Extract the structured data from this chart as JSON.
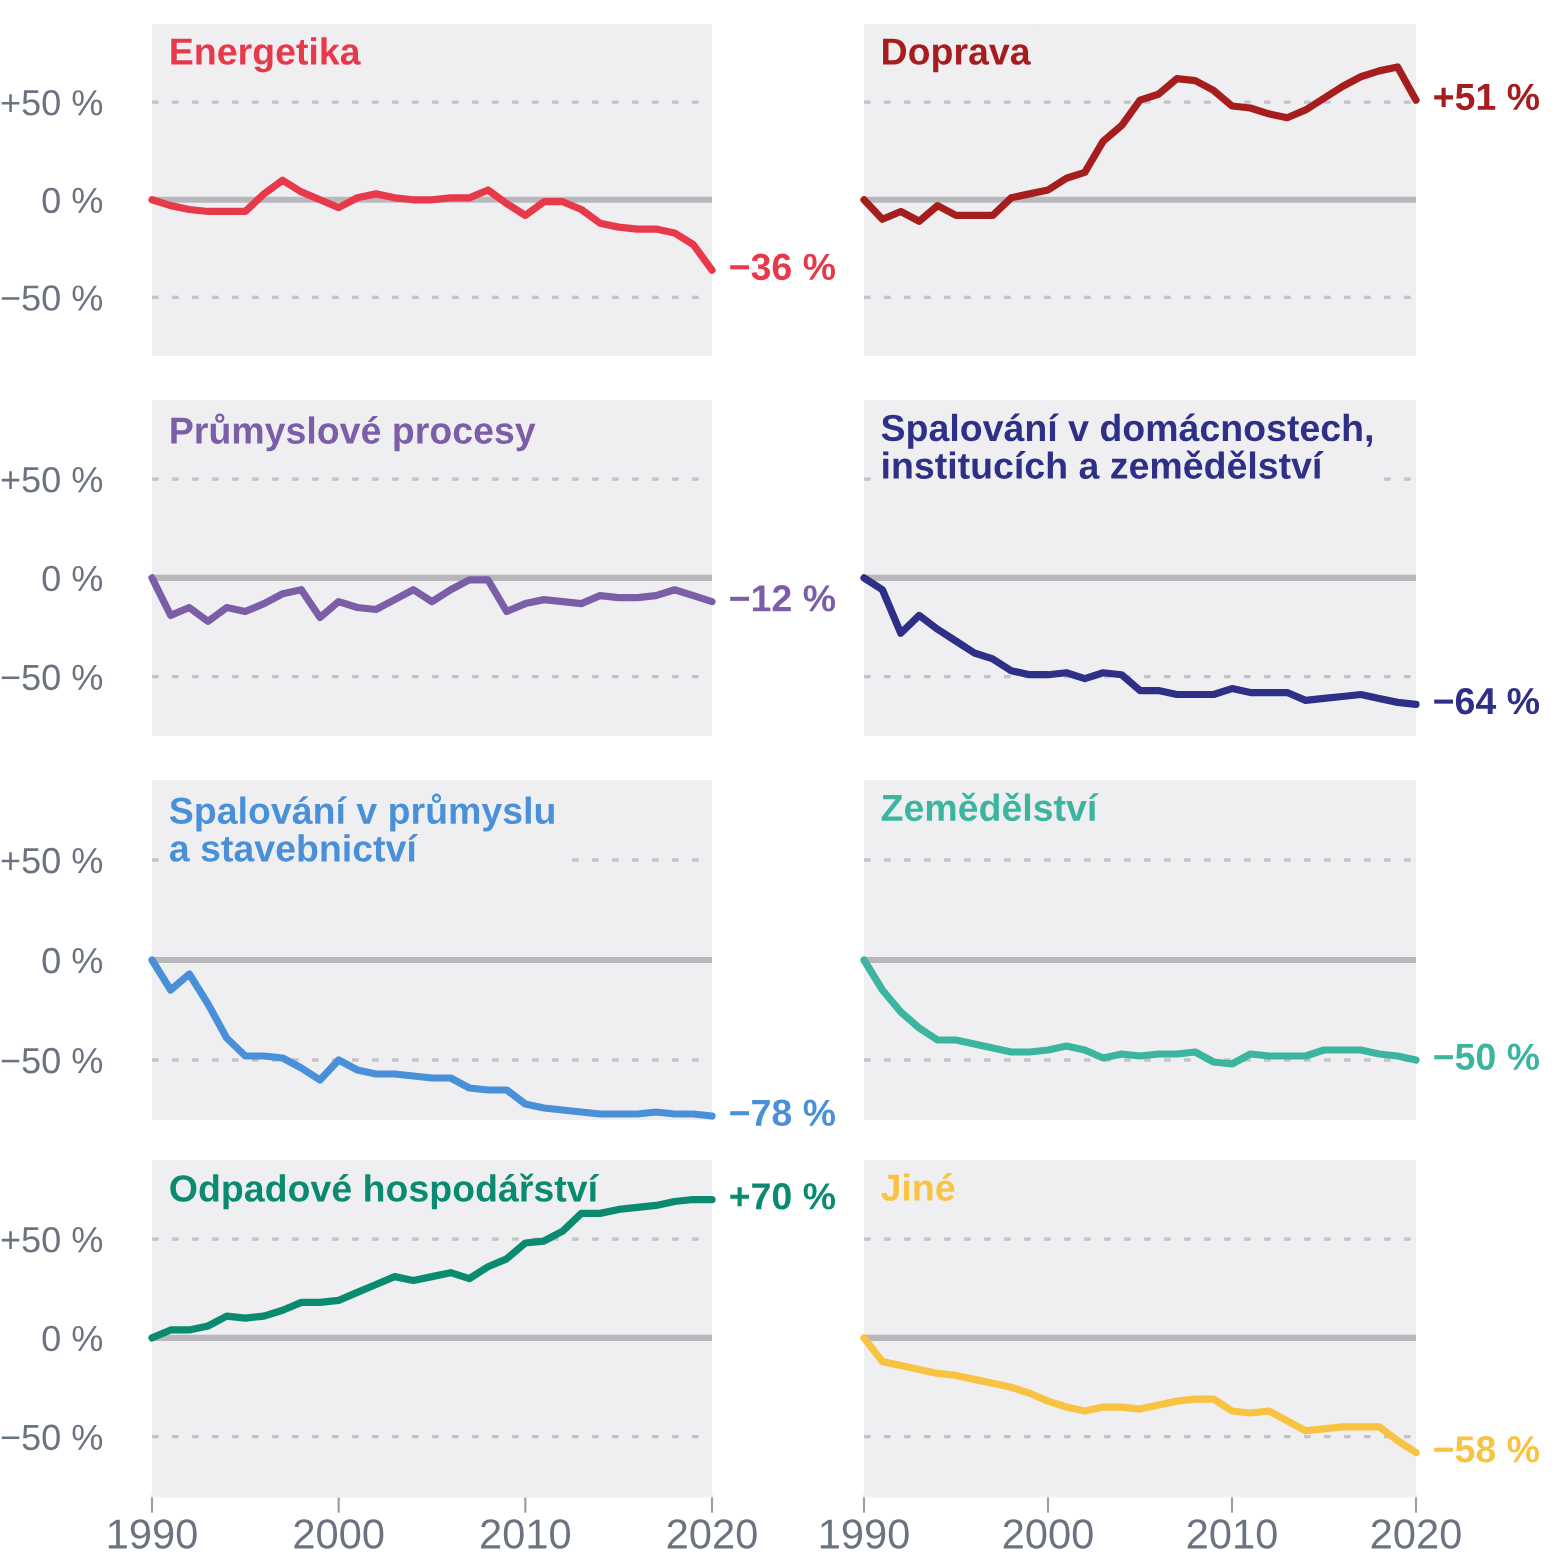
{
  "chart_data": [
    {
      "type": "line",
      "title": "Energetika",
      "x": [
        1990,
        1991,
        1992,
        1993,
        1994,
        1995,
        1996,
        1997,
        1998,
        1999,
        2000,
        2001,
        2002,
        2003,
        2004,
        2005,
        2006,
        2007,
        2008,
        2009,
        2010,
        2011,
        2012,
        2013,
        2014,
        2015,
        2016,
        2017,
        2018,
        2019,
        2020
      ],
      "series": [
        {
          "color": "#e8394a",
          "values": [
            0,
            -3,
            -5,
            -6,
            -6,
            -6,
            3,
            10,
            4,
            0,
            -4,
            1,
            3,
            1,
            0,
            0,
            1,
            1,
            5,
            -2,
            -8,
            -1,
            -1,
            -5,
            -12,
            -14,
            -15,
            -15,
            -17,
            -23,
            -36
          ],
          "value_labels": [
            null,
            null,
            null,
            null,
            null,
            null,
            null,
            null,
            null,
            null,
            null,
            null,
            null,
            null,
            null,
            null,
            null,
            null,
            null,
            null,
            null,
            null,
            null,
            null,
            null,
            null,
            null,
            null,
            null,
            null,
            "−36 %"
          ]
        }
      ],
      "xlim": [
        1990,
        2020
      ],
      "xticks": [
        1990,
        2000,
        2010,
        2020
      ],
      "ylim": [
        -80,
        90
      ],
      "yticks": [
        {
          "value": 50,
          "label": "+50 %"
        },
        {
          "value": 0,
          "label": "0 %"
        },
        {
          "value": -50,
          "label": "−50 %"
        }
      ],
      "grid": "y",
      "ref_lines": [
        {
          "axis": "y",
          "value": 0,
          "color": "#b8b8bc"
        }
      ],
      "tick_labels": "y"
    },
    {
      "type": "line",
      "title": "Doprava",
      "x": [
        1990,
        1991,
        1992,
        1993,
        1994,
        1995,
        1996,
        1997,
        1998,
        1999,
        2000,
        2001,
        2002,
        2003,
        2004,
        2005,
        2006,
        2007,
        2008,
        2009,
        2010,
        2011,
        2012,
        2013,
        2014,
        2015,
        2016,
        2017,
        2018,
        2019,
        2020
      ],
      "series": [
        {
          "color": "#a51d1d",
          "values": [
            0,
            -10,
            -6,
            -11,
            -3,
            -8,
            -8,
            -8,
            1,
            3,
            5,
            11,
            14,
            30,
            38,
            51,
            54,
            62,
            61,
            56,
            48,
            47,
            44,
            42,
            46,
            52,
            58,
            63,
            66,
            68,
            51
          ],
          "value_labels": [
            null,
            null,
            null,
            null,
            null,
            null,
            null,
            null,
            null,
            null,
            null,
            null,
            null,
            null,
            null,
            null,
            null,
            null,
            null,
            null,
            null,
            null,
            null,
            null,
            null,
            null,
            null,
            null,
            null,
            null,
            "+51 %"
          ]
        }
      ],
      "xlim": [
        1990,
        2020
      ],
      "xticks": [
        1990,
        2000,
        2010,
        2020
      ],
      "ylim": [
        -80,
        90
      ],
      "yticks": [
        {
          "value": 50,
          "label": null
        },
        {
          "value": 0,
          "label": null
        },
        {
          "value": -50,
          "label": null
        }
      ],
      "grid": "y",
      "ref_lines": [
        {
          "axis": "y",
          "value": 0,
          "color": "#b8b8bc"
        }
      ],
      "tick_labels": false
    },
    {
      "type": "line",
      "title": "Průmyslové procesy",
      "x": [
        1990,
        1991,
        1992,
        1993,
        1994,
        1995,
        1996,
        1997,
        1998,
        1999,
        2000,
        2001,
        2002,
        2003,
        2004,
        2005,
        2006,
        2007,
        2008,
        2009,
        2010,
        2011,
        2012,
        2013,
        2014,
        2015,
        2016,
        2017,
        2018,
        2019,
        2020
      ],
      "series": [
        {
          "color": "#7b5ea7",
          "values": [
            0,
            -19,
            -15,
            -22,
            -15,
            -17,
            -13,
            -8,
            -6,
            -20,
            -12,
            -15,
            -16,
            -11,
            -6,
            -12,
            -6,
            -1,
            -1,
            -17,
            -13,
            -11,
            -12,
            -13,
            -9,
            -10,
            -10,
            -9,
            -6,
            -9,
            -12
          ],
          "value_labels": [
            null,
            null,
            null,
            null,
            null,
            null,
            null,
            null,
            null,
            null,
            null,
            null,
            null,
            null,
            null,
            null,
            null,
            null,
            null,
            null,
            null,
            null,
            null,
            null,
            null,
            null,
            null,
            null,
            null,
            null,
            "−12 %"
          ]
        }
      ],
      "xlim": [
        1990,
        2020
      ],
      "xticks": [
        1990,
        2000,
        2010,
        2020
      ],
      "ylim": [
        -80,
        90
      ],
      "yticks": [
        {
          "value": 50,
          "label": "+50 %"
        },
        {
          "value": 0,
          "label": "0 %"
        },
        {
          "value": -50,
          "label": "−50 %"
        }
      ],
      "grid": "y",
      "ref_lines": [
        {
          "axis": "y",
          "value": 0,
          "color": "#b8b8bc"
        }
      ],
      "tick_labels": "y"
    },
    {
      "type": "line",
      "title": "Spalování v domácnostech,\ninstitucích a zemědělství",
      "x": [
        1990,
        1991,
        1992,
        1993,
        1994,
        1995,
        1996,
        1997,
        1998,
        1999,
        2000,
        2001,
        2002,
        2003,
        2004,
        2005,
        2006,
        2007,
        2008,
        2009,
        2010,
        2011,
        2012,
        2013,
        2014,
        2015,
        2016,
        2017,
        2018,
        2019,
        2020
      ],
      "series": [
        {
          "color": "#2e2f87",
          "values": [
            0,
            -6,
            -28,
            -19,
            -26,
            -32,
            -38,
            -41,
            -47,
            -49,
            -49,
            -48,
            -51,
            -48,
            -49,
            -57,
            -57,
            -59,
            -59,
            -59,
            -56,
            -58,
            -58,
            -58,
            -62,
            -61,
            -60,
            -59,
            -61,
            -63,
            -64
          ],
          "value_labels": [
            null,
            null,
            null,
            null,
            null,
            null,
            null,
            null,
            null,
            null,
            null,
            null,
            null,
            null,
            null,
            null,
            null,
            null,
            null,
            null,
            null,
            null,
            null,
            null,
            null,
            null,
            null,
            null,
            null,
            null,
            "−64 %"
          ]
        }
      ],
      "xlim": [
        1990,
        2020
      ],
      "xticks": [
        1990,
        2000,
        2010,
        2020
      ],
      "ylim": [
        -80,
        90
      ],
      "yticks": [
        {
          "value": 50,
          "label": null
        },
        {
          "value": 0,
          "label": null
        },
        {
          "value": -50,
          "label": null
        }
      ],
      "grid": "y",
      "ref_lines": [
        {
          "axis": "y",
          "value": 0,
          "color": "#b8b8bc"
        }
      ],
      "tick_labels": false
    },
    {
      "type": "line",
      "title": "Spalování v průmyslu\na stavebnictví",
      "x": [
        1990,
        1991,
        1992,
        1993,
        1994,
        1995,
        1996,
        1997,
        1998,
        1999,
        2000,
        2001,
        2002,
        2003,
        2004,
        2005,
        2006,
        2007,
        2008,
        2009,
        2010,
        2011,
        2012,
        2013,
        2014,
        2015,
        2016,
        2017,
        2018,
        2019,
        2020
      ],
      "series": [
        {
          "color": "#4a90d9",
          "values": [
            0,
            -15,
            -7,
            -22,
            -39,
            -48,
            -48,
            -49,
            -54,
            -60,
            -50,
            -55,
            -57,
            -57,
            -58,
            -59,
            -59,
            -64,
            -65,
            -65,
            -72,
            -74,
            -75,
            -76,
            -77,
            -77,
            -77,
            -76,
            -77,
            -77,
            -78
          ],
          "value_labels": [
            null,
            null,
            null,
            null,
            null,
            null,
            null,
            null,
            null,
            null,
            null,
            null,
            null,
            null,
            null,
            null,
            null,
            null,
            null,
            null,
            null,
            null,
            null,
            null,
            null,
            null,
            null,
            null,
            null,
            null,
            "−78 %"
          ]
        }
      ],
      "xlim": [
        1990,
        2020
      ],
      "xticks": [
        1990,
        2000,
        2010,
        2020
      ],
      "ylim": [
        -80,
        90
      ],
      "yticks": [
        {
          "value": 50,
          "label": "+50 %"
        },
        {
          "value": 0,
          "label": "0 %"
        },
        {
          "value": -50,
          "label": "−50 %"
        }
      ],
      "grid": "y",
      "ref_lines": [
        {
          "axis": "y",
          "value": 0,
          "color": "#b8b8bc"
        }
      ],
      "tick_labels": "y"
    },
    {
      "type": "line",
      "title": "Zemědělství",
      "x": [
        1990,
        1991,
        1992,
        1993,
        1994,
        1995,
        1996,
        1997,
        1998,
        1999,
        2000,
        2001,
        2002,
        2003,
        2004,
        2005,
        2006,
        2007,
        2008,
        2009,
        2010,
        2011,
        2012,
        2013,
        2014,
        2015,
        2016,
        2017,
        2018,
        2019,
        2020
      ],
      "series": [
        {
          "color": "#3bb5a0",
          "values": [
            0,
            -15,
            -26,
            -34,
            -40,
            -40,
            -42,
            -44,
            -46,
            -46,
            -45,
            -43,
            -45,
            -49,
            -47,
            -48,
            -47,
            -47,
            -46,
            -51,
            -52,
            -47,
            -48,
            -48,
            -48,
            -45,
            -45,
            -45,
            -47,
            -48,
            -50
          ],
          "value_labels": [
            null,
            null,
            null,
            null,
            null,
            null,
            null,
            null,
            null,
            null,
            null,
            null,
            null,
            null,
            null,
            null,
            null,
            null,
            null,
            null,
            null,
            null,
            null,
            null,
            null,
            null,
            null,
            null,
            null,
            null,
            "−50 %"
          ]
        }
      ],
      "xlim": [
        1990,
        2020
      ],
      "xticks": [
        1990,
        2000,
        2010,
        2020
      ],
      "ylim": [
        -80,
        90
      ],
      "yticks": [
        {
          "value": 50,
          "label": null
        },
        {
          "value": 0,
          "label": null
        },
        {
          "value": -50,
          "label": null
        }
      ],
      "grid": "y",
      "ref_lines": [
        {
          "axis": "y",
          "value": 0,
          "color": "#b8b8bc"
        }
      ],
      "tick_labels": false
    },
    {
      "type": "line",
      "title": "Odpadové hospodářství",
      "x": [
        1990,
        1991,
        1992,
        1993,
        1994,
        1995,
        1996,
        1997,
        1998,
        1999,
        2000,
        2001,
        2002,
        2003,
        2004,
        2005,
        2006,
        2007,
        2008,
        2009,
        2010,
        2011,
        2012,
        2013,
        2014,
        2015,
        2016,
        2017,
        2018,
        2019,
        2020
      ],
      "series": [
        {
          "color": "#0a8a70",
          "values": [
            0,
            4,
            4,
            6,
            11,
            10,
            11,
            14,
            18,
            18,
            19,
            23,
            27,
            31,
            29,
            31,
            33,
            30,
            36,
            40,
            48,
            49,
            54,
            63,
            63,
            65,
            66,
            67,
            69,
            70,
            70
          ],
          "value_labels": [
            null,
            null,
            null,
            null,
            null,
            null,
            null,
            null,
            null,
            null,
            null,
            null,
            null,
            null,
            null,
            null,
            null,
            null,
            null,
            null,
            null,
            null,
            null,
            null,
            null,
            null,
            null,
            null,
            null,
            null,
            "+70 %"
          ]
        }
      ],
      "xlim": [
        1990,
        2020
      ],
      "xticks": [
        1990,
        2000,
        2010,
        2020
      ],
      "ylim": [
        -80,
        90
      ],
      "yticks": [
        {
          "value": 50,
          "label": "+50 %"
        },
        {
          "value": 0,
          "label": "0 %"
        },
        {
          "value": -50,
          "label": "−50 %"
        }
      ],
      "grid": "y",
      "ref_lines": [
        {
          "axis": "y",
          "value": 0,
          "color": "#b8b8bc"
        }
      ]
    },
    {
      "type": "line",
      "title": "Jiné",
      "x": [
        1990,
        1991,
        1992,
        1993,
        1994,
        1995,
        1996,
        1997,
        1998,
        1999,
        2000,
        2001,
        2002,
        2003,
        2004,
        2005,
        2006,
        2007,
        2008,
        2009,
        2010,
        2011,
        2012,
        2013,
        2014,
        2015,
        2016,
        2017,
        2018,
        2019,
        2020
      ],
      "series": [
        {
          "color": "#f8c340",
          "values": [
            0,
            -12,
            -14,
            -16,
            -18,
            -19,
            -21,
            -23,
            -25,
            -28,
            -32,
            -35,
            -37,
            -35,
            -35,
            -36,
            -34,
            -32,
            -31,
            -31,
            -37,
            -38,
            -37,
            -42,
            -47,
            -46,
            -45,
            -45,
            -45,
            -52,
            -58
          ],
          "value_labels": [
            null,
            null,
            null,
            null,
            null,
            null,
            null,
            null,
            null,
            null,
            null,
            null,
            null,
            null,
            null,
            null,
            null,
            null,
            null,
            null,
            null,
            null,
            null,
            null,
            null,
            null,
            null,
            null,
            null,
            null,
            "−58 %"
          ]
        }
      ],
      "xlim": [
        1990,
        2020
      ],
      "xticks": [
        1990,
        2000,
        2010,
        2020
      ],
      "ylim": [
        -80,
        90
      ],
      "yticks": [
        {
          "value": 50,
          "label": null
        },
        {
          "value": 0,
          "label": null
        },
        {
          "value": -50,
          "label": null
        }
      ],
      "grid": "y",
      "ref_lines": [
        {
          "axis": "y",
          "value": 0,
          "color": "#b8b8bc"
        }
      ],
      "tick_labels": "x"
    }
  ]
}
